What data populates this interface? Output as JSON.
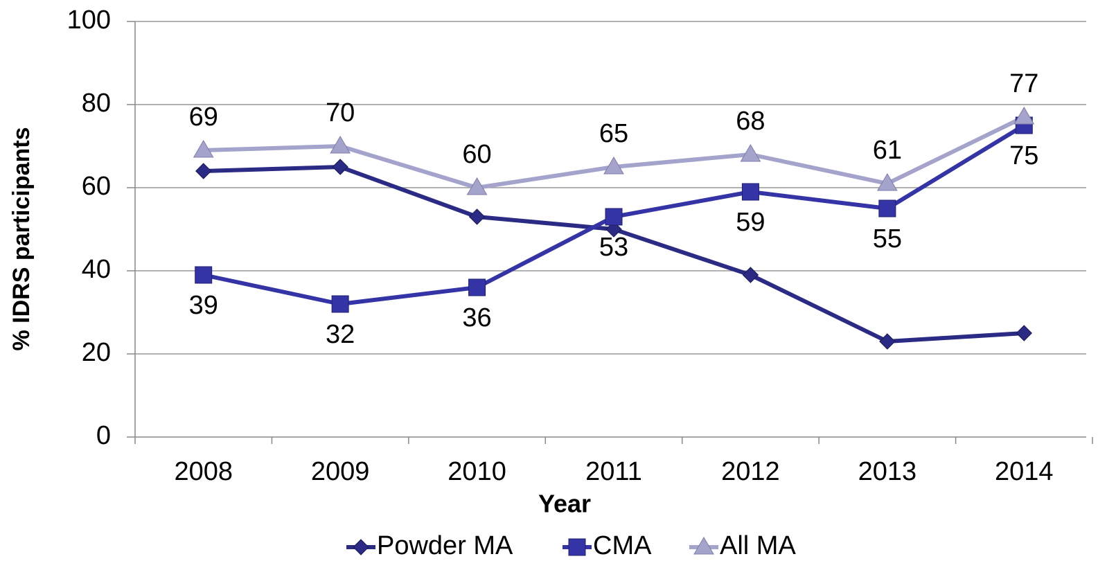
{
  "chart_data": {
    "type": "line",
    "x_label": "Year",
    "y_label": "% IDRS participants",
    "categories": [
      "2008",
      "2009",
      "2010",
      "2011",
      "2012",
      "2013",
      "2014"
    ],
    "ylim": [
      0,
      100
    ],
    "yticks": [
      0,
      20,
      40,
      60,
      80,
      100
    ],
    "grid": true,
    "legend": "bottom",
    "series": [
      {
        "name": "Powder MA",
        "color": "#2b2b86",
        "marker": "diamond",
        "show_labels": false,
        "values": [
          64,
          65,
          53,
          50,
          39,
          23,
          25
        ]
      },
      {
        "name": "CMA",
        "color": "#3434a6",
        "marker": "square",
        "show_labels": true,
        "label_position": "below",
        "values": [
          39,
          32,
          36,
          53,
          59,
          55,
          75
        ]
      },
      {
        "name": "All MA",
        "color": "#a3a3cc",
        "marker": "triangle",
        "show_labels": true,
        "label_position": "above",
        "values": [
          69,
          70,
          60,
          65,
          68,
          61,
          77
        ]
      }
    ]
  }
}
